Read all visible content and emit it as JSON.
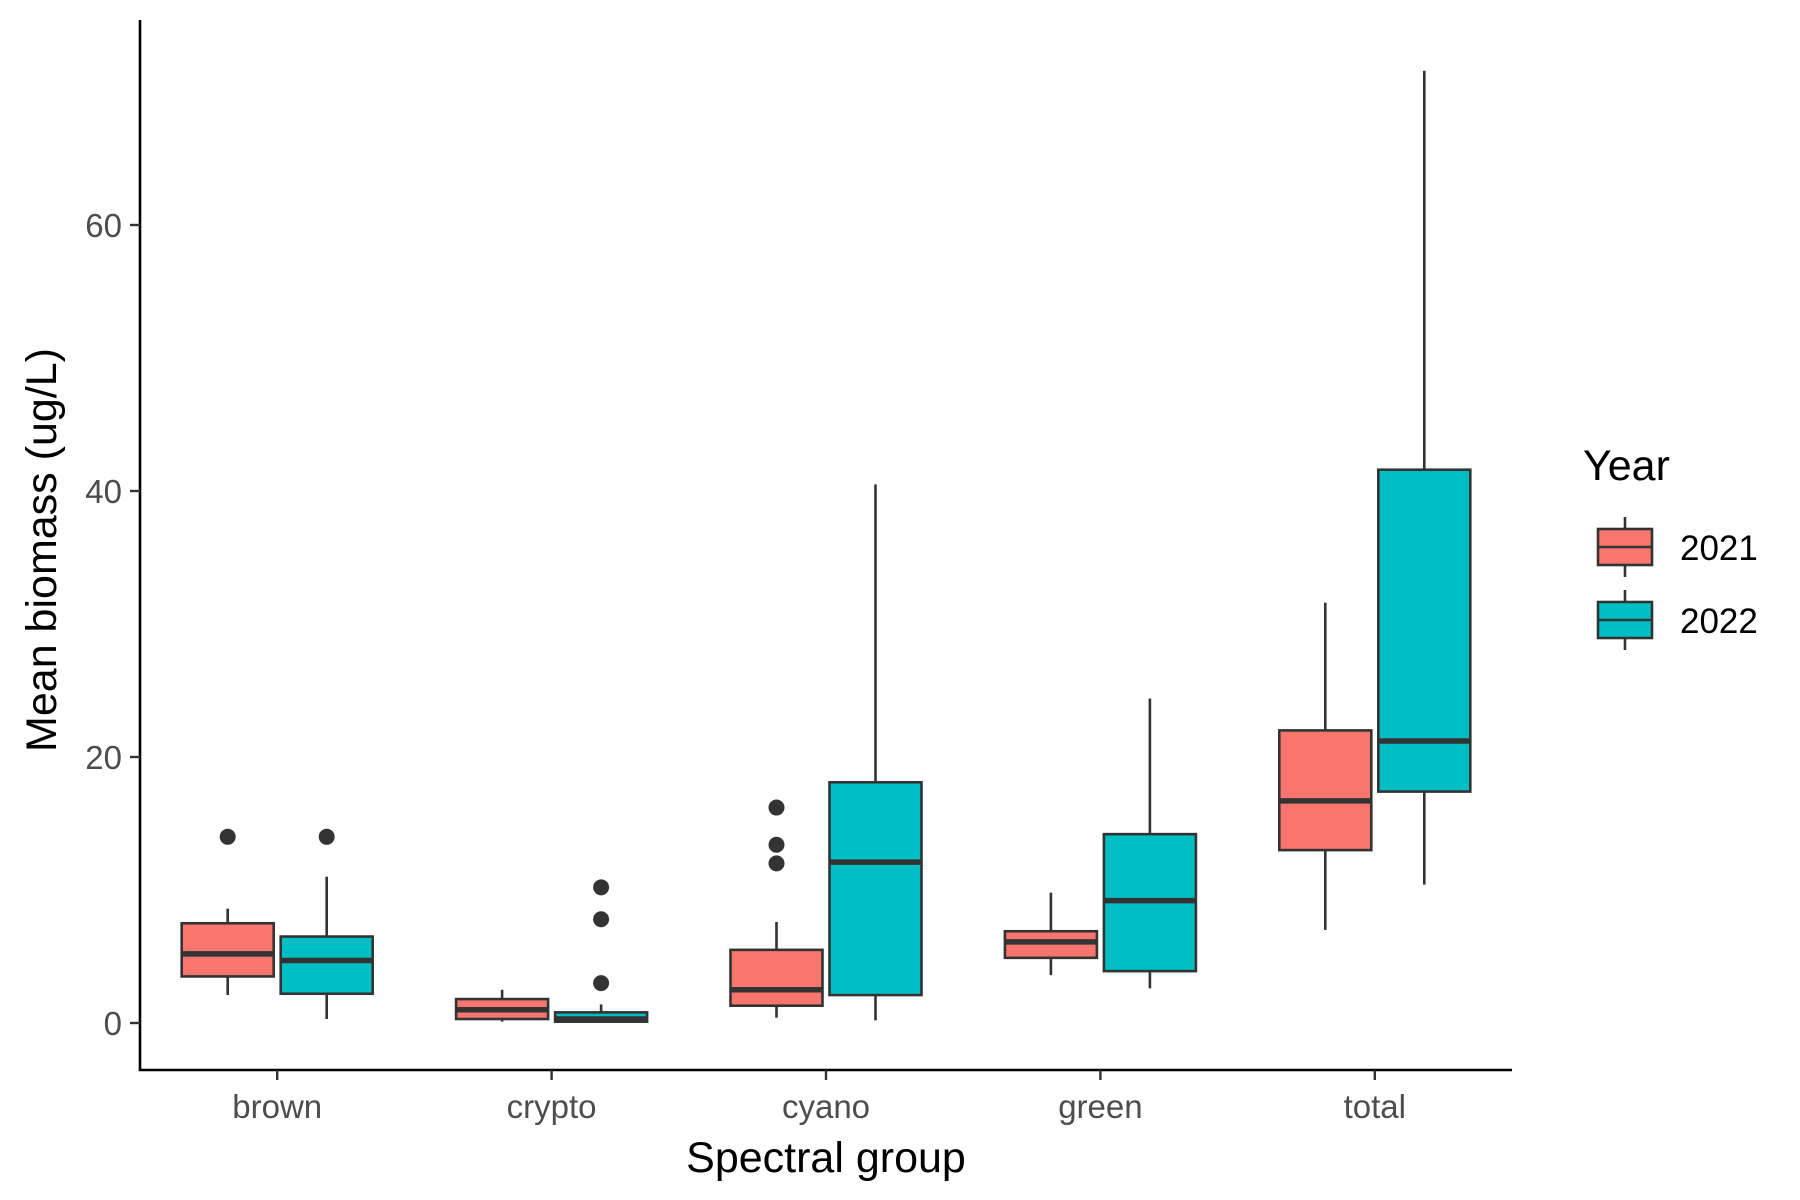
{
  "chart_data": {
    "type": "boxplot",
    "xlabel": "Spectral group",
    "ylabel": "Mean biomass (ug/L)",
    "categories": [
      "brown",
      "crypto",
      "cyano",
      "green",
      "total"
    ],
    "yticks": [
      0,
      20,
      40,
      60
    ],
    "ylim": [
      -3.5,
      75
    ],
    "grid": false,
    "legend": {
      "title": "Year",
      "position": "right",
      "entries": [
        {
          "label": "2021",
          "color": "#F8766D"
        },
        {
          "label": "2022",
          "color": "#00BFC4"
        }
      ]
    },
    "series": [
      {
        "name": "2021",
        "color": "#F8766D",
        "boxes": [
          {
            "category": "brown",
            "whisker_low": 2.1,
            "q1": 3.5,
            "median": 5.2,
            "q3": 7.5,
            "whisker_high": 8.6,
            "outliers": [
              14.0
            ]
          },
          {
            "category": "crypto",
            "whisker_low": 0.1,
            "q1": 0.3,
            "median": 1.0,
            "q3": 1.8,
            "whisker_high": 2.5,
            "outliers": []
          },
          {
            "category": "cyano",
            "whisker_low": 0.4,
            "q1": 1.3,
            "median": 2.5,
            "q3": 5.5,
            "whisker_high": 7.6,
            "outliers": [
              12.0,
              13.4,
              16.2
            ]
          },
          {
            "category": "green",
            "whisker_low": 3.6,
            "q1": 4.9,
            "median": 6.1,
            "q3": 6.9,
            "whisker_high": 9.8,
            "outliers": []
          },
          {
            "category": "total",
            "whisker_low": 7.0,
            "q1": 13.0,
            "median": 16.7,
            "q3": 22.0,
            "whisker_high": 31.6,
            "outliers": []
          }
        ]
      },
      {
        "name": "2022",
        "color": "#00BFC4",
        "boxes": [
          {
            "category": "brown",
            "whisker_low": 0.3,
            "q1": 2.2,
            "median": 4.7,
            "q3": 6.5,
            "whisker_high": 11.0,
            "outliers": [
              14.0
            ]
          },
          {
            "category": "crypto",
            "whisker_low": 0.0,
            "q1": 0.1,
            "median": 0.3,
            "q3": 0.8,
            "whisker_high": 1.4,
            "outliers": [
              3.0,
              7.8,
              10.2
            ]
          },
          {
            "category": "cyano",
            "whisker_low": 0.2,
            "q1": 2.1,
            "median": 12.1,
            "q3": 18.1,
            "whisker_high": 40.5,
            "outliers": []
          },
          {
            "category": "green",
            "whisker_low": 2.6,
            "q1": 3.9,
            "median": 9.2,
            "q3": 14.2,
            "whisker_high": 24.4,
            "outliers": []
          },
          {
            "category": "total",
            "whisker_low": 10.4,
            "q1": 17.4,
            "median": 21.2,
            "q3": 41.6,
            "whisker_high": 71.6,
            "outliers": []
          }
        ]
      }
    ]
  }
}
